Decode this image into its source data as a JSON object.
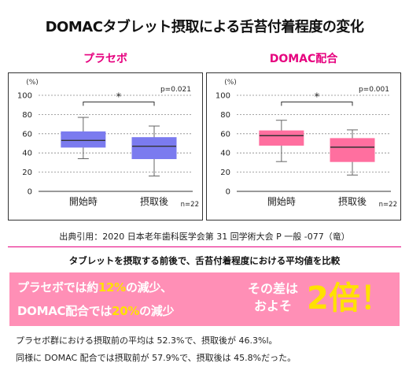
{
  "title": "DOMACタブレット摂取による舌苔付着程度の変化",
  "source": "出典引用：2020 日本老年歯科医学会第 31 回学術大会 P 一般 -077（竜）",
  "subheading": "タブレットを摂取する前後で、舌苔付着程度における平均値を比較",
  "banner": {
    "line1_pre": "プラセボでは約",
    "line1_hl": "12%",
    "line1_post": "の減少、",
    "line2_pre": "DOMAC配合では",
    "line2_hl": "20%",
    "line2_post": "の減少",
    "mid_line1": "その差は",
    "mid_line2": "およそ",
    "big": "2倍！"
  },
  "notes": {
    "line1": "プラセボ群における摂取前の平均は 52.3%で、摂取後が 46.3%l。",
    "line2": "同様に DOMAC 配合では摂取前が 57.9%で、摂取後は 45.8%だった。"
  },
  "colors": {
    "placebo_box": "#7b7bef",
    "domac_box": "#ff6f9f",
    "accent": "#e6007e",
    "banner_bg": "#ff8fb6",
    "highlight": "#ffe100"
  },
  "chart_data": [
    {
      "type": "boxplot",
      "title": "プラセボ",
      "unit_label": "(%)",
      "ylim": [
        0,
        100
      ],
      "yticks": [
        0,
        20,
        40,
        60,
        80,
        100
      ],
      "grid": true,
      "categories": [
        "開始時",
        "摂取後"
      ],
      "boxes": [
        {
          "min": 34,
          "q1": 46,
          "median": 53,
          "q3": 62,
          "max": 77
        },
        {
          "min": 16,
          "q1": 34,
          "median": 47,
          "q3": 56,
          "max": 68
        }
      ],
      "significance": "*",
      "p_value": "p=0.021",
      "n_label": "n=22"
    },
    {
      "type": "boxplot",
      "title": "DOMAC配合",
      "unit_label": "(%)",
      "ylim": [
        0,
        100
      ],
      "yticks": [
        0,
        20,
        40,
        60,
        80,
        100
      ],
      "grid": true,
      "categories": [
        "開始時",
        "摂取後"
      ],
      "boxes": [
        {
          "min": 31,
          "q1": 48,
          "median": 58,
          "q3": 63,
          "max": 74
        },
        {
          "min": 17,
          "q1": 31,
          "median": 46,
          "q3": 55,
          "max": 64
        }
      ],
      "significance": "*",
      "p_value": "p=0.001",
      "n_label": "n=22"
    }
  ]
}
